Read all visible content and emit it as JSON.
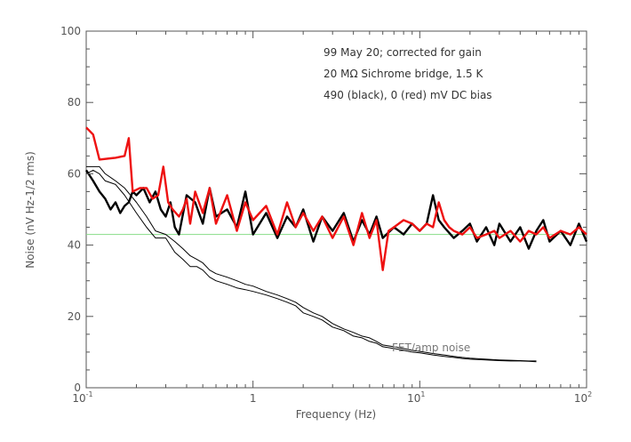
{
  "chart_data": {
    "type": "line",
    "x_scale": "log",
    "xlim": [
      0.1,
      100
    ],
    "ylim": [
      0,
      100
    ],
    "xlabel": "Frequency (Hz)",
    "ylabel": "Noise (nV Hz-1/2 rms)",
    "x_ticks": [
      {
        "label": "10",
        "exp": "-1"
      },
      {
        "label": "1",
        "exp": ""
      },
      {
        "label": "10",
        "exp": "1"
      },
      {
        "label": "10",
        "exp": "2"
      }
    ],
    "y_ticks": [
      "0",
      "20",
      "40",
      "60",
      "80",
      "100"
    ],
    "annotations": [
      "99 May 20; corrected for gain",
      "20 MΩ Sichrome bridge, 1.5 K",
      "490 (black), 0 (red) mV DC bias"
    ],
    "fet_label": "FET/amp noise",
    "reference_line": {
      "y": 43,
      "color": "#88dd88"
    },
    "series": [
      {
        "color": "#000000",
        "stroke": "thick",
        "points": [
          [
            0.1,
            61
          ],
          [
            0.11,
            58
          ],
          [
            0.12,
            55
          ],
          [
            0.13,
            53
          ],
          [
            0.14,
            50
          ],
          [
            0.15,
            52
          ],
          [
            0.16,
            49
          ],
          [
            0.17,
            51
          ],
          [
            0.18,
            52
          ],
          [
            0.19,
            55
          ],
          [
            0.2,
            54
          ],
          [
            0.22,
            56
          ],
          [
            0.24,
            52
          ],
          [
            0.26,
            55
          ],
          [
            0.28,
            50
          ],
          [
            0.3,
            48
          ],
          [
            0.32,
            52
          ],
          [
            0.34,
            45
          ],
          [
            0.36,
            43
          ],
          [
            0.4,
            54
          ],
          [
            0.45,
            52
          ],
          [
            0.5,
            46
          ],
          [
            0.55,
            56
          ],
          [
            0.6,
            48
          ],
          [
            0.7,
            50
          ],
          [
            0.8,
            45
          ],
          [
            0.9,
            55
          ],
          [
            1.0,
            43
          ],
          [
            1.2,
            49
          ],
          [
            1.4,
            42
          ],
          [
            1.6,
            48
          ],
          [
            1.8,
            45
          ],
          [
            2.0,
            50
          ],
          [
            2.3,
            41
          ],
          [
            2.6,
            48
          ],
          [
            3.0,
            44
          ],
          [
            3.5,
            49
          ],
          [
            4.0,
            41
          ],
          [
            4.5,
            47
          ],
          [
            5.0,
            43
          ],
          [
            5.5,
            48
          ],
          [
            6.0,
            42
          ],
          [
            7.0,
            45
          ],
          [
            8.0,
            43
          ],
          [
            9.0,
            46
          ],
          [
            10,
            44
          ],
          [
            11,
            46
          ],
          [
            12,
            54
          ],
          [
            13,
            47
          ],
          [
            14,
            45
          ],
          [
            16,
            42
          ],
          [
            18,
            44
          ],
          [
            20,
            46
          ],
          [
            22,
            41
          ],
          [
            25,
            45
          ],
          [
            28,
            40
          ],
          [
            30,
            46
          ],
          [
            35,
            41
          ],
          [
            40,
            45
          ],
          [
            45,
            39
          ],
          [
            50,
            44
          ],
          [
            55,
            47
          ],
          [
            60,
            41
          ],
          [
            70,
            44
          ],
          [
            80,
            40
          ],
          [
            90,
            46
          ],
          [
            100,
            41
          ]
        ]
      },
      {
        "color": "#ee1111",
        "stroke": "thick",
        "points": [
          [
            0.1,
            73
          ],
          [
            0.11,
            71
          ],
          [
            0.12,
            64
          ],
          [
            0.15,
            64.5
          ],
          [
            0.17,
            65
          ],
          [
            0.18,
            70
          ],
          [
            0.19,
            55
          ],
          [
            0.21,
            56
          ],
          [
            0.23,
            56
          ],
          [
            0.25,
            53
          ],
          [
            0.27,
            54
          ],
          [
            0.29,
            62
          ],
          [
            0.31,
            52
          ],
          [
            0.33,
            50
          ],
          [
            0.36,
            48
          ],
          [
            0.38,
            50
          ],
          [
            0.4,
            53
          ],
          [
            0.42,
            46
          ],
          [
            0.45,
            55
          ],
          [
            0.5,
            49
          ],
          [
            0.55,
            56
          ],
          [
            0.6,
            46
          ],
          [
            0.7,
            54
          ],
          [
            0.8,
            44
          ],
          [
            0.9,
            52
          ],
          [
            1.0,
            47
          ],
          [
            1.2,
            51
          ],
          [
            1.4,
            43
          ],
          [
            1.6,
            52
          ],
          [
            1.8,
            45
          ],
          [
            2.0,
            49
          ],
          [
            2.3,
            44
          ],
          [
            2.6,
            48
          ],
          [
            3.0,
            42
          ],
          [
            3.5,
            48
          ],
          [
            4.0,
            40
          ],
          [
            4.5,
            49
          ],
          [
            5.0,
            42
          ],
          [
            5.5,
            47
          ],
          [
            6.0,
            33
          ],
          [
            6.5,
            44
          ],
          [
            7.0,
            45
          ],
          [
            8.0,
            47
          ],
          [
            9.0,
            46
          ],
          [
            10,
            44
          ],
          [
            11,
            46
          ],
          [
            12,
            45
          ],
          [
            13,
            52
          ],
          [
            14,
            47
          ],
          [
            15,
            45
          ],
          [
            16,
            44
          ],
          [
            18,
            43
          ],
          [
            20,
            45
          ],
          [
            22,
            42
          ],
          [
            25,
            43
          ],
          [
            28,
            44
          ],
          [
            30,
            42
          ],
          [
            35,
            44
          ],
          [
            40,
            41
          ],
          [
            45,
            44
          ],
          [
            50,
            43
          ],
          [
            55,
            45
          ],
          [
            60,
            42
          ],
          [
            70,
            44
          ],
          [
            80,
            43
          ],
          [
            90,
            45
          ],
          [
            100,
            43
          ]
        ]
      },
      {
        "color": "#000000",
        "stroke": "thin",
        "points": [
          [
            0.1,
            60
          ],
          [
            0.11,
            61
          ],
          [
            0.12,
            60
          ],
          [
            0.13,
            58
          ],
          [
            0.15,
            57
          ],
          [
            0.17,
            54
          ],
          [
            0.2,
            49
          ],
          [
            0.23,
            45
          ],
          [
            0.26,
            42
          ],
          [
            0.3,
            42
          ],
          [
            0.34,
            38
          ],
          [
            0.38,
            36
          ],
          [
            0.42,
            34
          ],
          [
            0.46,
            34
          ],
          [
            0.5,
            33
          ],
          [
            0.55,
            31
          ],
          [
            0.6,
            30
          ],
          [
            0.7,
            29
          ],
          [
            0.8,
            28
          ],
          [
            0.9,
            27.5
          ],
          [
            1.0,
            27
          ],
          [
            1.2,
            26
          ],
          [
            1.4,
            25
          ],
          [
            1.6,
            24
          ],
          [
            1.8,
            23
          ],
          [
            2.0,
            21
          ],
          [
            2.3,
            20
          ],
          [
            2.6,
            19
          ],
          [
            3.0,
            17
          ],
          [
            3.5,
            16
          ],
          [
            4.0,
            14.5
          ],
          [
            4.5,
            14
          ],
          [
            5.0,
            13
          ],
          [
            5.5,
            12.5
          ],
          [
            6.0,
            11.5
          ],
          [
            7.0,
            11
          ],
          [
            8.0,
            10.5
          ],
          [
            9.0,
            10
          ],
          [
            10,
            9.8
          ],
          [
            12,
            9.2
          ],
          [
            14,
            8.8
          ],
          [
            16,
            8.5
          ],
          [
            18,
            8.2
          ],
          [
            20,
            8
          ],
          [
            25,
            7.8
          ],
          [
            30,
            7.6
          ],
          [
            35,
            7.5
          ],
          [
            40,
            7.5
          ],
          [
            45,
            7.4
          ],
          [
            50,
            7.3
          ]
        ]
      },
      {
        "color": "#000000",
        "stroke": "thin",
        "points": [
          [
            0.1,
            62
          ],
          [
            0.11,
            62
          ],
          [
            0.12,
            62
          ],
          [
            0.13,
            60
          ],
          [
            0.15,
            58
          ],
          [
            0.17,
            56
          ],
          [
            0.2,
            52
          ],
          [
            0.23,
            48
          ],
          [
            0.26,
            44
          ],
          [
            0.3,
            43
          ],
          [
            0.34,
            41
          ],
          [
            0.38,
            39
          ],
          [
            0.42,
            37
          ],
          [
            0.46,
            36
          ],
          [
            0.5,
            35
          ],
          [
            0.55,
            33
          ],
          [
            0.6,
            32
          ],
          [
            0.7,
            31
          ],
          [
            0.8,
            30
          ],
          [
            0.9,
            29
          ],
          [
            1.0,
            28.5
          ],
          [
            1.2,
            27
          ],
          [
            1.4,
            26
          ],
          [
            1.6,
            25
          ],
          [
            1.8,
            24
          ],
          [
            2.0,
            22.5
          ],
          [
            2.3,
            21
          ],
          [
            2.6,
            20
          ],
          [
            3.0,
            18
          ],
          [
            3.5,
            16.5
          ],
          [
            4.0,
            15.5
          ],
          [
            4.5,
            14.5
          ],
          [
            5.0,
            14
          ],
          [
            5.5,
            13
          ],
          [
            6.0,
            12
          ],
          [
            7.0,
            11.5
          ],
          [
            8.0,
            11
          ],
          [
            9.0,
            10.5
          ],
          [
            10,
            10.2
          ],
          [
            12,
            9.6
          ],
          [
            14,
            9.2
          ],
          [
            16,
            8.8
          ],
          [
            18,
            8.5
          ],
          [
            20,
            8.3
          ],
          [
            25,
            8
          ],
          [
            30,
            7.8
          ],
          [
            35,
            7.7
          ],
          [
            40,
            7.6
          ],
          [
            45,
            7.5
          ],
          [
            50,
            7.5
          ]
        ]
      }
    ]
  }
}
